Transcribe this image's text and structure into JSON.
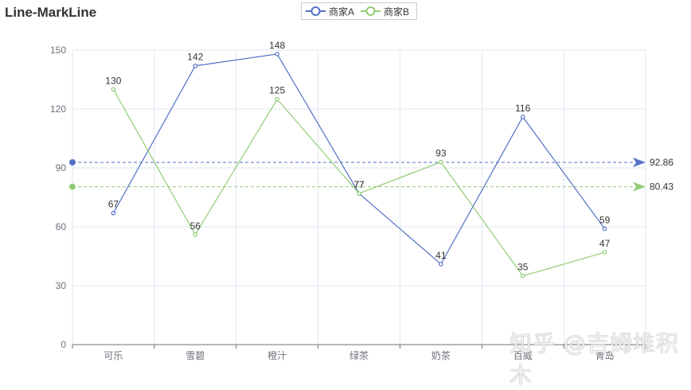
{
  "title": "Line-MarkLine",
  "legend": [
    {
      "label": "商家A",
      "color": "#5470c6"
    },
    {
      "label": "商家B",
      "color": "#91cc75"
    }
  ],
  "watermark": "知乎 @吉姆堆积木",
  "chart_data": {
    "type": "line",
    "title": "Line-MarkLine",
    "categories": [
      "可乐",
      "雪碧",
      "橙汁",
      "绿茶",
      "奶茶",
      "百威",
      "青岛"
    ],
    "series": [
      {
        "name": "商家A",
        "color": "#5470c6",
        "values": [
          67,
          142,
          148,
          77,
          41,
          116,
          59
        ],
        "markLine": {
          "type": "average",
          "value": 92.86
        }
      },
      {
        "name": "商家B",
        "color": "#91cc75",
        "values": [
          130,
          56,
          125,
          77,
          93,
          35,
          47
        ],
        "markLine": {
          "type": "average",
          "value": 80.43
        }
      }
    ],
    "yticks": [
      0,
      30,
      60,
      90,
      120,
      150
    ],
    "ylim": [
      0,
      150
    ],
    "xlabel": "",
    "ylabel": "",
    "grid": true,
    "legend_position": "top-center",
    "data_labels": true
  }
}
